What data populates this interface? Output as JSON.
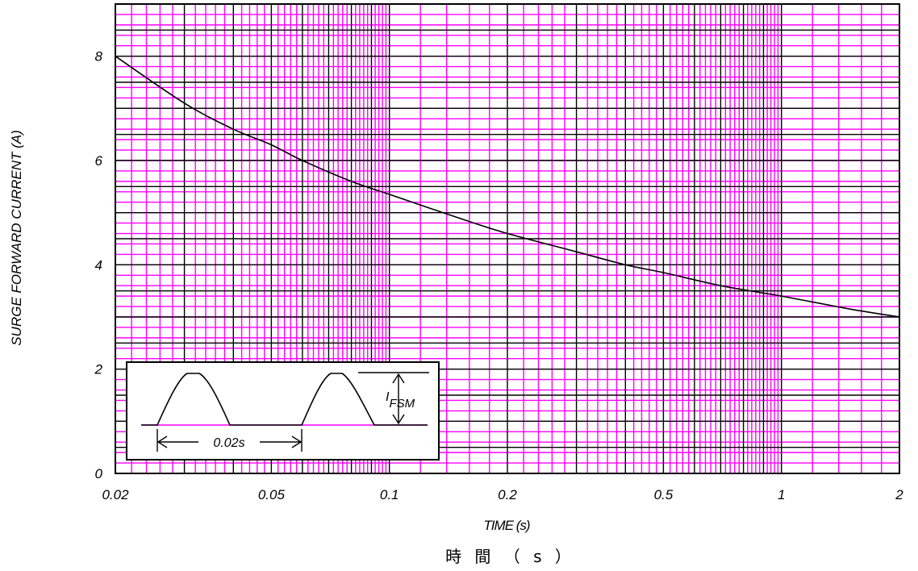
{
  "chart_data": {
    "type": "line",
    "x_scale": "log",
    "y_scale": "linear",
    "xlim": [
      0.02,
      2
    ],
    "ylim": [
      0,
      9
    ],
    "xlabel": "TIME (s)",
    "xlabel_cjk": "時 間 （ s ）",
    "ylabel": "SURGE FORWARD CURRENT (A)",
    "x_ticks": [
      {
        "value": 0.02,
        "label": "0.02"
      },
      {
        "value": 0.05,
        "label": "0.05"
      },
      {
        "value": 0.1,
        "label": "0.1"
      },
      {
        "value": 0.2,
        "label": "0.2"
      },
      {
        "value": 0.5,
        "label": "0.5"
      },
      {
        "value": 1,
        "label": "1"
      },
      {
        "value": 2,
        "label": "2"
      }
    ],
    "y_ticks": [
      {
        "value": 0,
        "label": "0"
      },
      {
        "value": 2,
        "label": "2"
      },
      {
        "value": 4,
        "label": "4"
      },
      {
        "value": 6,
        "label": "6"
      },
      {
        "value": 8,
        "label": "8"
      }
    ],
    "grid": true,
    "grid_major_color": "#000000",
    "grid_minor_color": "#ff00ff",
    "line_color": "#000000",
    "series": [
      {
        "x": [
          0.02,
          0.03,
          0.04,
          0.05,
          0.06,
          0.08,
          0.1,
          0.15,
          0.2,
          0.3,
          0.4,
          0.5,
          0.7,
          1.0,
          1.5,
          2.0
        ],
        "values": [
          8.0,
          7.1,
          6.6,
          6.3,
          6.0,
          5.6,
          5.35,
          4.9,
          4.6,
          4.25,
          4.0,
          3.85,
          3.6,
          3.4,
          3.15,
          3.0
        ]
      }
    ],
    "inset": {
      "period_label": "0.02s",
      "current_label_main": "I",
      "current_label_sub": "FSM"
    }
  }
}
